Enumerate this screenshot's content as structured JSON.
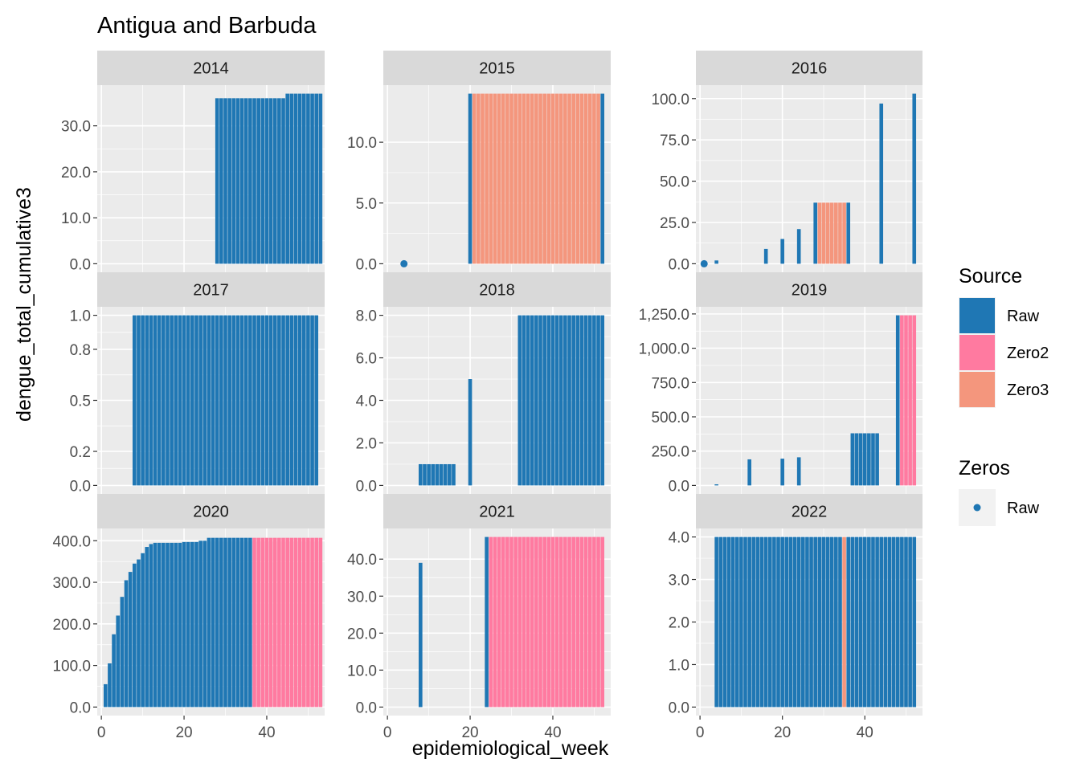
{
  "chart_data": {
    "type": "bar",
    "title": "Antigua and Barbuda",
    "xlabel": "epidemiological_week",
    "ylabel": "dengue_total_cumulative3",
    "xlim": [
      -1,
      54
    ],
    "x_ticks": [
      0,
      20,
      40
    ],
    "legend": {
      "placement": "right",
      "source_title": "Source",
      "source_items": [
        {
          "label": "Raw",
          "color": "#1f77b4"
        },
        {
          "label": "Zero2",
          "color": "#ff7aa0"
        },
        {
          "label": "Zero3",
          "color": "#f4967d"
        }
      ],
      "zeros_title": "Zeros",
      "zeros_items": [
        {
          "label": "Raw",
          "color": "#1f77b4"
        }
      ]
    },
    "panels": [
      {
        "year": "2014",
        "ylim": [
          -1.85,
          38.85
        ],
        "y_ticks": [
          0,
          10,
          20,
          30
        ],
        "y_tick_labels": [
          "0.0",
          "10.0",
          "20.0",
          "30.0"
        ],
        "bars": [
          {
            "from": 28,
            "to": 44,
            "value": 36,
            "source": "Raw"
          },
          {
            "from": 45,
            "to": 53,
            "value": 37,
            "source": "Raw"
          }
        ],
        "points": []
      },
      {
        "year": "2015",
        "ylim": [
          -0.7,
          14.7
        ],
        "y_ticks": [
          0,
          5,
          10
        ],
        "y_tick_labels": [
          "0.0",
          "5.0",
          "10.0"
        ],
        "bars": [
          {
            "from": 20,
            "to": 20,
            "value": 14,
            "source": "Raw"
          },
          {
            "from": 21,
            "to": 51,
            "value": 14,
            "source": "Zero3"
          },
          {
            "from": 52,
            "to": 52,
            "value": 14,
            "source": "Raw"
          }
        ],
        "points": [
          {
            "x": 4,
            "y": 0
          }
        ]
      },
      {
        "year": "2016",
        "ylim": [
          -5.15,
          108.15
        ],
        "y_ticks": [
          0,
          25,
          50,
          75,
          100
        ],
        "y_tick_labels": [
          "0.0",
          "25.0",
          "50.0",
          "75.0",
          "100.0"
        ],
        "bars": [
          {
            "from": 4,
            "to": 4,
            "value": 2,
            "source": "Raw"
          },
          {
            "from": 16,
            "to": 16,
            "value": 9,
            "source": "Raw"
          },
          {
            "from": 20,
            "to": 20,
            "value": 15,
            "source": "Raw"
          },
          {
            "from": 24,
            "to": 24,
            "value": 21,
            "source": "Raw"
          },
          {
            "from": 28,
            "to": 28,
            "value": 37,
            "source": "Raw"
          },
          {
            "from": 29,
            "to": 35,
            "value": 37,
            "source": "Zero3"
          },
          {
            "from": 36,
            "to": 36,
            "value": 37,
            "source": "Raw"
          },
          {
            "from": 44,
            "to": 44,
            "value": 97,
            "source": "Raw"
          },
          {
            "from": 52,
            "to": 52,
            "value": 103,
            "source": "Raw"
          }
        ],
        "points": [
          {
            "x": 1,
            "y": 0
          }
        ]
      },
      {
        "year": "2017",
        "ylim": [
          -0.05,
          1.05
        ],
        "y_ticks": [
          0,
          0.2,
          0.5,
          0.8,
          1.0
        ],
        "y_tick_labels": [
          "0.0",
          "0.2",
          "0.5",
          "0.8",
          "1.0"
        ],
        "bars": [
          {
            "from": 8,
            "to": 52,
            "value": 1,
            "source": "Raw"
          }
        ],
        "points": []
      },
      {
        "year": "2018",
        "ylim": [
          -0.4,
          8.4
        ],
        "y_ticks": [
          0,
          2,
          4,
          6,
          8
        ],
        "y_tick_labels": [
          "0.0",
          "2.0",
          "4.0",
          "6.0",
          "8.0"
        ],
        "bars": [
          {
            "from": 8,
            "to": 16,
            "value": 1,
            "source": "Raw"
          },
          {
            "from": 20,
            "to": 20,
            "value": 5,
            "source": "Raw"
          },
          {
            "from": 32,
            "to": 52,
            "value": 8,
            "source": "Raw"
          }
        ],
        "points": []
      },
      {
        "year": "2019",
        "ylim": [
          -62,
          1302
        ],
        "y_ticks": [
          0,
          250,
          500,
          750,
          1000,
          1250
        ],
        "y_tick_labels": [
          "0.0",
          "250.0",
          "500.0",
          "750.0",
          "1,000.0",
          "1,250.0"
        ],
        "bars": [
          {
            "from": 4,
            "to": 4,
            "value": 8,
            "source": "Raw"
          },
          {
            "from": 12,
            "to": 12,
            "value": 190,
            "source": "Raw"
          },
          {
            "from": 20,
            "to": 20,
            "value": 195,
            "source": "Raw"
          },
          {
            "from": 24,
            "to": 24,
            "value": 205,
            "source": "Raw"
          },
          {
            "from": 37,
            "to": 43,
            "value": 380,
            "source": "Raw"
          },
          {
            "from": 48,
            "to": 48,
            "value": 1240,
            "source": "Raw"
          },
          {
            "from": 49,
            "to": 52,
            "value": 1240,
            "source": "Zero2"
          }
        ],
        "points": []
      },
      {
        "year": "2020",
        "ylim": [
          -20.5,
          429.5
        ],
        "y_ticks": [
          0,
          100,
          200,
          300,
          400
        ],
        "y_tick_labels": [
          "0.0",
          "100.0",
          "200.0",
          "300.0",
          "400.0"
        ],
        "bars": [
          {
            "from": 1,
            "to": 1,
            "value": 55,
            "source": "Raw"
          },
          {
            "from": 2,
            "to": 2,
            "value": 105,
            "source": "Raw"
          },
          {
            "from": 3,
            "to": 3,
            "value": 175,
            "source": "Raw"
          },
          {
            "from": 4,
            "to": 4,
            "value": 220,
            "source": "Raw"
          },
          {
            "from": 5,
            "to": 5,
            "value": 265,
            "source": "Raw"
          },
          {
            "from": 6,
            "to": 6,
            "value": 305,
            "source": "Raw"
          },
          {
            "from": 7,
            "to": 7,
            "value": 325,
            "source": "Raw"
          },
          {
            "from": 8,
            "to": 8,
            "value": 345,
            "source": "Raw"
          },
          {
            "from": 9,
            "to": 9,
            "value": 355,
            "source": "Raw"
          },
          {
            "from": 10,
            "to": 10,
            "value": 370,
            "source": "Raw"
          },
          {
            "from": 11,
            "to": 11,
            "value": 385,
            "source": "Raw"
          },
          {
            "from": 12,
            "to": 12,
            "value": 392,
            "source": "Raw"
          },
          {
            "from": 13,
            "to": 19,
            "value": 395,
            "source": "Raw"
          },
          {
            "from": 20,
            "to": 23,
            "value": 397,
            "source": "Raw"
          },
          {
            "from": 24,
            "to": 25,
            "value": 400,
            "source": "Raw"
          },
          {
            "from": 26,
            "to": 36,
            "value": 407,
            "source": "Raw"
          },
          {
            "from": 37,
            "to": 53,
            "value": 407,
            "source": "Zero2"
          }
        ],
        "points": []
      },
      {
        "year": "2021",
        "ylim": [
          -2.3,
          48.3
        ],
        "y_ticks": [
          0,
          10,
          20,
          30,
          40
        ],
        "y_tick_labels": [
          "0.0",
          "10.0",
          "20.0",
          "30.0",
          "40.0"
        ],
        "bars": [
          {
            "from": 8,
            "to": 8,
            "value": 39,
            "source": "Raw"
          },
          {
            "from": 24,
            "to": 24,
            "value": 46,
            "source": "Raw"
          },
          {
            "from": 25,
            "to": 52,
            "value": 46,
            "source": "Zero2"
          }
        ],
        "points": []
      },
      {
        "year": "2022",
        "ylim": [
          -0.2,
          4.2
        ],
        "y_ticks": [
          0,
          1,
          2,
          3,
          4
        ],
        "y_tick_labels": [
          "0.0",
          "1.0",
          "2.0",
          "3.0",
          "4.0"
        ],
        "bars": [
          {
            "from": 4,
            "to": 34,
            "value": 4,
            "source": "Raw"
          },
          {
            "from": 35,
            "to": 35,
            "value": 4,
            "source": "Zero3"
          },
          {
            "from": 36,
            "to": 52,
            "value": 4,
            "source": "Raw"
          }
        ],
        "points": []
      }
    ]
  }
}
